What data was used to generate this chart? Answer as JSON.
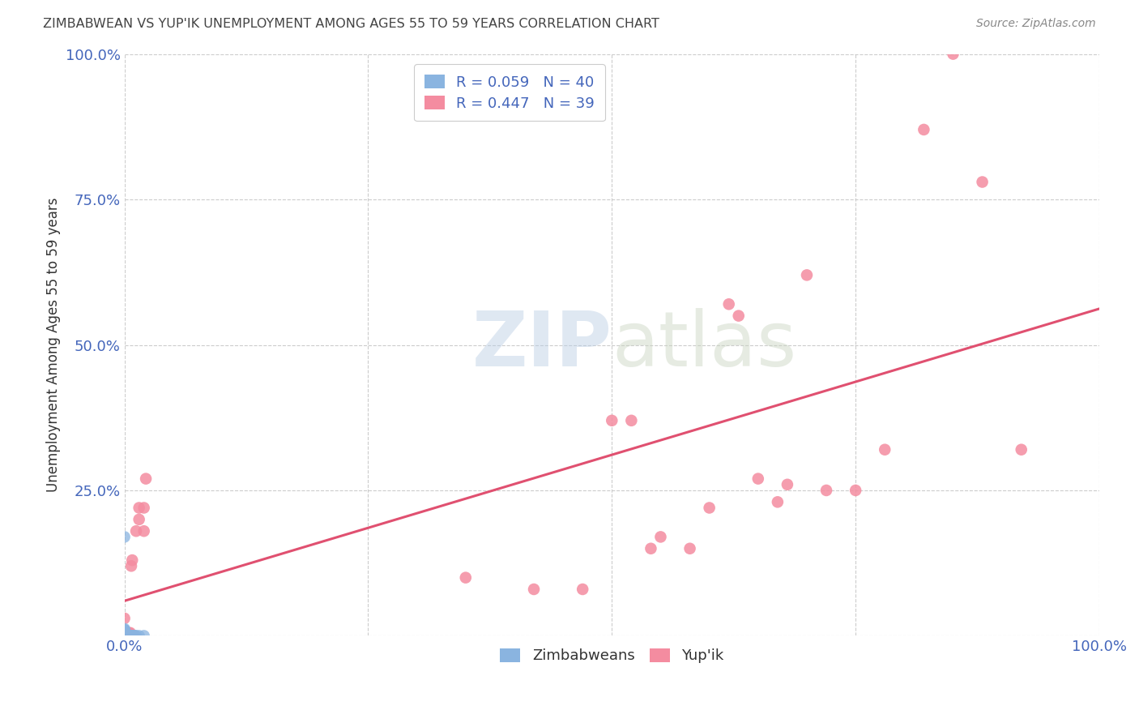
{
  "title": "ZIMBABWEAN VS YUP'IK UNEMPLOYMENT AMONG AGES 55 TO 59 YEARS CORRELATION CHART",
  "source": "Source: ZipAtlas.com",
  "ylabel": "Unemployment Among Ages 55 to 59 years",
  "xlim": [
    0.0,
    1.0
  ],
  "ylim": [
    0.0,
    1.0
  ],
  "xticks": [
    0.0,
    0.25,
    0.5,
    0.75,
    1.0
  ],
  "yticks": [
    0.0,
    0.25,
    0.5,
    0.75,
    1.0
  ],
  "xticklabels": [
    "0.0%",
    "",
    "",
    "",
    "100.0%"
  ],
  "yticklabels": [
    "",
    "25.0%",
    "50.0%",
    "75.0%",
    "100.0%"
  ],
  "watermark_zip": "ZIP",
  "watermark_atlas": "atlas",
  "zimbabwean_color": "#8ab4e0",
  "yupik_color": "#f48ca0",
  "yupik_trendline_color": "#e05070",
  "zimbabwean_trendline_color": "#90b8e0",
  "background_color": "#ffffff",
  "grid_color": "#cccccc",
  "title_color": "#444444",
  "axis_color": "#4466bb",
  "legend_r1": "R = 0.059",
  "legend_n1": "N = 40",
  "legend_r2": "R = 0.447",
  "legend_n2": "N = 39",
  "zim_scatter_x": [
    0.0,
    0.0,
    0.0,
    0.0,
    0.0,
    0.0,
    0.0,
    0.0,
    0.0,
    0.0,
    0.0,
    0.0,
    0.0,
    0.0,
    0.0,
    0.0,
    0.0,
    0.0,
    0.0,
    0.0,
    0.0,
    0.0,
    0.0,
    0.0,
    0.0,
    0.0,
    0.0,
    0.005,
    0.005,
    0.005,
    0.006,
    0.007,
    0.008,
    0.008,
    0.009,
    0.01,
    0.011,
    0.012,
    0.015,
    0.02
  ],
  "zim_scatter_y": [
    0.0,
    0.0,
    0.0,
    0.0,
    0.0,
    0.0,
    0.0,
    0.0,
    0.0,
    0.0,
    0.0,
    0.0,
    0.0,
    0.0,
    0.005,
    0.005,
    0.006,
    0.007,
    0.007,
    0.008,
    0.008,
    0.009,
    0.01,
    0.01,
    0.01,
    0.012,
    0.17,
    0.0,
    0.0,
    0.0,
    0.0,
    0.0,
    0.0,
    0.0,
    0.0,
    0.0,
    0.0,
    0.0,
    0.0,
    0.0
  ],
  "yup_scatter_x": [
    0.0,
    0.0,
    0.0,
    0.0,
    0.003,
    0.005,
    0.005,
    0.006,
    0.007,
    0.008,
    0.01,
    0.012,
    0.015,
    0.015,
    0.02,
    0.02,
    0.022,
    0.35,
    0.42,
    0.47,
    0.5,
    0.52,
    0.54,
    0.55,
    0.58,
    0.6,
    0.62,
    0.63,
    0.65,
    0.67,
    0.68,
    0.7,
    0.72,
    0.75,
    0.78,
    0.82,
    0.85,
    0.88,
    0.92
  ],
  "yup_scatter_y": [
    0.0,
    0.0,
    0.0,
    0.03,
    0.005,
    0.0,
    0.005,
    0.005,
    0.12,
    0.13,
    0.0,
    0.18,
    0.2,
    0.22,
    0.18,
    0.22,
    0.27,
    0.1,
    0.08,
    0.08,
    0.37,
    0.37,
    0.15,
    0.17,
    0.15,
    0.22,
    0.57,
    0.55,
    0.27,
    0.23,
    0.26,
    0.62,
    0.25,
    0.25,
    0.32,
    0.87,
    1.0,
    0.78,
    0.32
  ]
}
